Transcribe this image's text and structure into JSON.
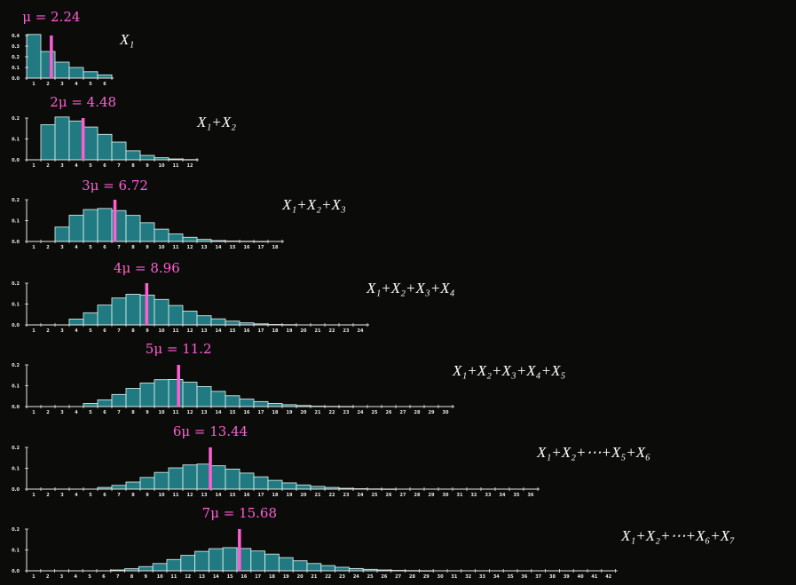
{
  "colors": {
    "background": "#0b0c0a",
    "bar_fill": "#237f88",
    "bar_stroke": "#d6f2ee",
    "mean_line": "#ff5ed3",
    "axis": "#e8e8e8",
    "text": "#ffffff"
  },
  "chart_data": [
    {
      "type": "bar",
      "formula": "X₁",
      "mean_label": "μ = 2.24",
      "mean": 2.24,
      "x_ticks": [
        1,
        2,
        3,
        4,
        5,
        6
      ],
      "y_ticks": [
        "0.0",
        "0.1",
        "0.2",
        "0.3",
        "0.4"
      ],
      "ylim": [
        0,
        0.4
      ],
      "x": [
        1,
        2,
        3,
        4,
        5,
        6
      ],
      "values": [
        0.41,
        0.25,
        0.15,
        0.1,
        0.06,
        0.03
      ]
    },
    {
      "type": "bar",
      "formula": "X₁+X₂",
      "mean_label": "2μ = 4.48",
      "mean": 4.48,
      "x_ticks": [
        1,
        2,
        3,
        4,
        5,
        6,
        7,
        8,
        9,
        10,
        11,
        12
      ],
      "y_ticks": [
        "0.0",
        "0.1",
        "0.2"
      ],
      "ylim": [
        0,
        0.2
      ],
      "x": [
        2,
        3,
        4,
        5,
        6,
        7,
        8,
        9,
        10,
        11,
        12
      ],
      "values": [
        0.168,
        0.205,
        0.186,
        0.157,
        0.122,
        0.085,
        0.043,
        0.021,
        0.01,
        0.004,
        0.001
      ]
    },
    {
      "type": "bar",
      "formula": "X₁+X₂+X₃",
      "mean_label": "3μ = 6.72",
      "mean": 6.72,
      "x_ticks": [
        1,
        2,
        3,
        4,
        5,
        6,
        7,
        8,
        9,
        10,
        11,
        12,
        13,
        14,
        15,
        16,
        17,
        18
      ],
      "y_ticks": [
        "0.0",
        "0.1",
        "0.2"
      ],
      "ylim": [
        0,
        0.2
      ],
      "x": [
        3,
        4,
        5,
        6,
        7,
        8,
        9,
        10,
        11,
        12,
        13,
        14,
        15,
        16,
        17
      ],
      "values": [
        0.069,
        0.126,
        0.153,
        0.158,
        0.148,
        0.125,
        0.09,
        0.059,
        0.036,
        0.02,
        0.01,
        0.004,
        0.002,
        0.001,
        0.0002
      ]
    },
    {
      "type": "bar",
      "formula": "X₁+X₂+X₃+X₄",
      "mean_label": "4μ = 8.96",
      "mean": 8.96,
      "x_ticks": [
        1,
        2,
        3,
        4,
        5,
        6,
        7,
        8,
        9,
        10,
        11,
        12,
        13,
        14,
        15,
        16,
        17,
        18,
        19,
        20,
        21,
        22,
        23,
        24
      ],
      "y_ticks": [
        "0.0",
        "0.1",
        "0.2"
      ],
      "ylim": [
        0,
        0.2
      ],
      "x": [
        4,
        5,
        6,
        7,
        8,
        9,
        10,
        11,
        12,
        13,
        14,
        15,
        16,
        17,
        18,
        19
      ],
      "values": [
        0.028,
        0.058,
        0.095,
        0.129,
        0.147,
        0.143,
        0.122,
        0.093,
        0.066,
        0.044,
        0.029,
        0.018,
        0.01,
        0.005,
        0.002,
        0.001
      ]
    },
    {
      "type": "bar",
      "formula": "X₁+X₂+X₃+X₄+X₅",
      "mean_label": "5μ = 11.2",
      "mean": 11.2,
      "x_ticks": [
        1,
        2,
        3,
        4,
        5,
        6,
        7,
        8,
        9,
        10,
        11,
        12,
        13,
        14,
        15,
        16,
        17,
        18,
        19,
        20,
        21,
        22,
        23,
        24,
        25,
        26,
        27,
        28,
        29,
        30
      ],
      "y_ticks": [
        "0.0",
        "0.1",
        "0.2"
      ],
      "ylim": [
        0,
        0.2
      ],
      "x": [
        5,
        6,
        7,
        8,
        9,
        10,
        11,
        12,
        13,
        14,
        15,
        16,
        17,
        18,
        19,
        20,
        21,
        22,
        23
      ],
      "values": [
        0.015,
        0.032,
        0.058,
        0.087,
        0.113,
        0.129,
        0.13,
        0.117,
        0.096,
        0.073,
        0.052,
        0.036,
        0.024,
        0.015,
        0.009,
        0.005,
        0.002,
        0.001,
        0.0005
      ]
    },
    {
      "type": "bar",
      "formula": "X₁+X₂+⋯+X₅+X₆",
      "mean_label": "6μ = 13.44",
      "mean": 13.44,
      "x_ticks": [
        1,
        2,
        3,
        4,
        5,
        6,
        7,
        8,
        9,
        10,
        11,
        12,
        13,
        14,
        15,
        16,
        17,
        18,
        19,
        20,
        21,
        22,
        23,
        24,
        25,
        26,
        27,
        28,
        29,
        30,
        31,
        32,
        33,
        34,
        35,
        36
      ],
      "y_ticks": [
        "0.0",
        "0.1",
        "0.2"
      ],
      "ylim": [
        0,
        0.2
      ],
      "x": [
        6,
        7,
        8,
        9,
        10,
        11,
        12,
        13,
        14,
        15,
        16,
        17,
        18,
        19,
        20,
        21,
        22,
        23,
        24,
        25,
        26
      ],
      "values": [
        0.008,
        0.018,
        0.034,
        0.056,
        0.08,
        0.102,
        0.116,
        0.12,
        0.112,
        0.096,
        0.077,
        0.059,
        0.042,
        0.03,
        0.02,
        0.013,
        0.008,
        0.004,
        0.002,
        0.001,
        0.0005
      ]
    },
    {
      "type": "bar",
      "formula": "X₁+X₂+⋯+X₆+X₇",
      "mean_label": "7μ = 15.68",
      "mean": 15.68,
      "x_ticks": [
        1,
        2,
        3,
        4,
        5,
        6,
        7,
        8,
        9,
        10,
        11,
        12,
        13,
        14,
        15,
        16,
        17,
        18,
        19,
        20,
        21,
        22,
        23,
        24,
        25,
        26,
        27,
        28,
        29,
        30,
        31,
        32,
        33,
        34,
        35,
        36,
        37,
        38,
        39,
        40,
        41,
        42
      ],
      "y_ticks": [
        "0.0",
        "0.1",
        "0.2"
      ],
      "ylim": [
        0,
        0.2
      ],
      "x": [
        7,
        8,
        9,
        10,
        11,
        12,
        13,
        14,
        15,
        16,
        17,
        18,
        19,
        20,
        21,
        22,
        23,
        24,
        25,
        26,
        27,
        28,
        29
      ],
      "values": [
        0.004,
        0.01,
        0.02,
        0.035,
        0.054,
        0.074,
        0.093,
        0.106,
        0.111,
        0.107,
        0.095,
        0.08,
        0.063,
        0.048,
        0.035,
        0.025,
        0.017,
        0.011,
        0.007,
        0.004,
        0.002,
        0.001,
        0.0005
      ]
    }
  ]
}
